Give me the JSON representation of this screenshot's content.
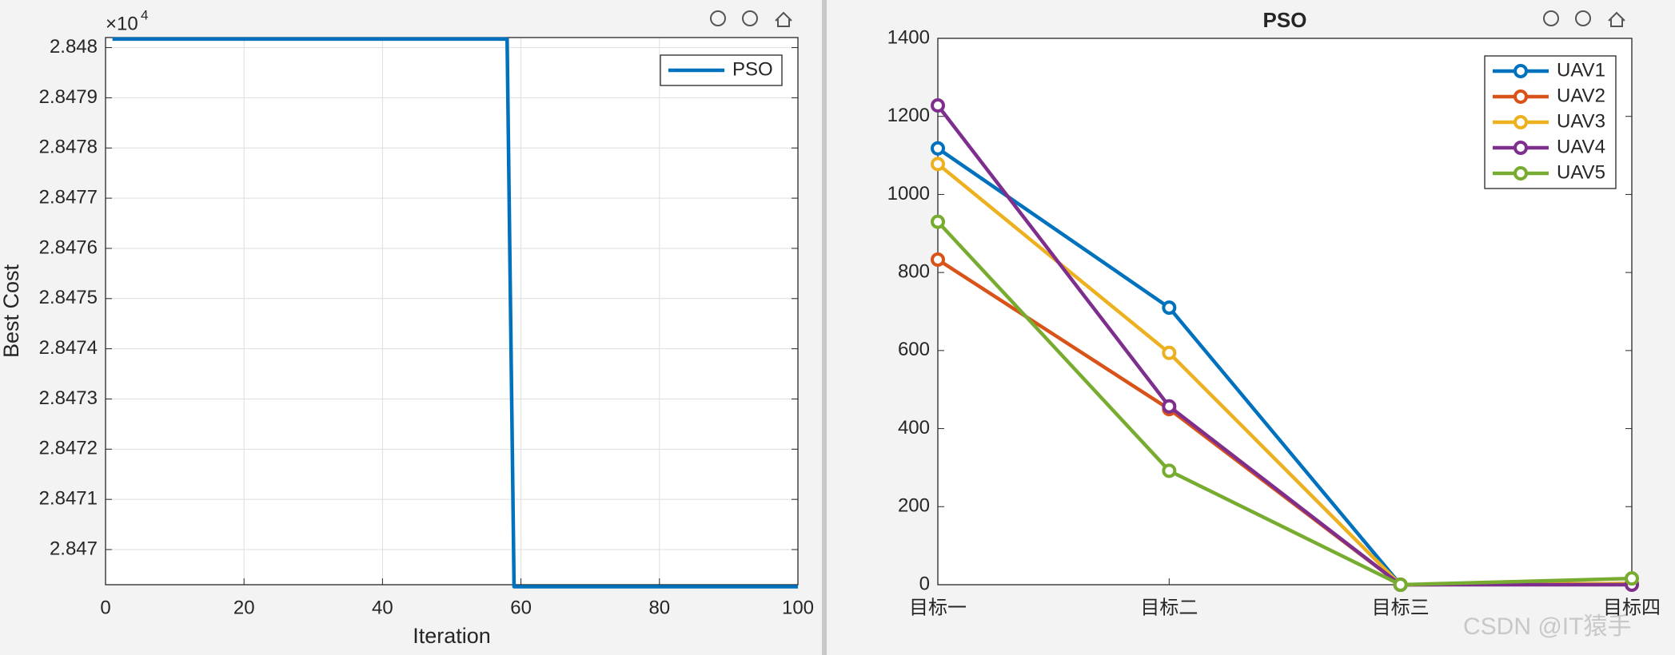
{
  "chart_data": [
    {
      "type": "line",
      "x": [
        1,
        58,
        59,
        100
      ],
      "series": [
        {
          "name": "PSO",
          "color": "#0072BD",
          "values": [
            2.848017,
            2.848017,
            2.846926,
            2.846926
          ]
        }
      ],
      "xlim": [
        0,
        100
      ],
      "xticks": [
        0,
        20,
        40,
        60,
        80,
        100
      ],
      "ylim": [
        2.84693,
        2.84802
      ],
      "yticks": [
        2.847,
        2.8471,
        2.8472,
        2.8473,
        2.8474,
        2.8475,
        2.8476,
        2.8477,
        2.8478,
        2.8479,
        2.848
      ],
      "xlabel": "Iteration",
      "ylabel": "Best Cost",
      "y_scale_label": "×10",
      "y_scale_exponent": "4",
      "grid": true,
      "legend": "top-right",
      "markers": false
    },
    {
      "type": "line",
      "title": "PSO",
      "categories": [
        "目标一",
        "目标二",
        "目标三",
        "目标四"
      ],
      "series": [
        {
          "name": "UAV1",
          "color": "#0072BD",
          "values": [
            1118,
            710,
            0,
            3
          ]
        },
        {
          "name": "UAV2",
          "color": "#D95319",
          "values": [
            833,
            450,
            0,
            3
          ]
        },
        {
          "name": "UAV3",
          "color": "#EDB120",
          "values": [
            1078,
            594,
            0,
            3
          ]
        },
        {
          "name": "UAV4",
          "color": "#7E2F8E",
          "values": [
            1228,
            457,
            0,
            0
          ]
        },
        {
          "name": "UAV5",
          "color": "#77AC30",
          "values": [
            930,
            292,
            0,
            16
          ]
        }
      ],
      "ylim": [
        0,
        1400
      ],
      "yticks": [
        0,
        200,
        400,
        600,
        800,
        1000,
        1200,
        1400
      ],
      "grid": false,
      "legend": "top-right",
      "markers": true
    }
  ],
  "watermark": "CSDN @IT猿手"
}
